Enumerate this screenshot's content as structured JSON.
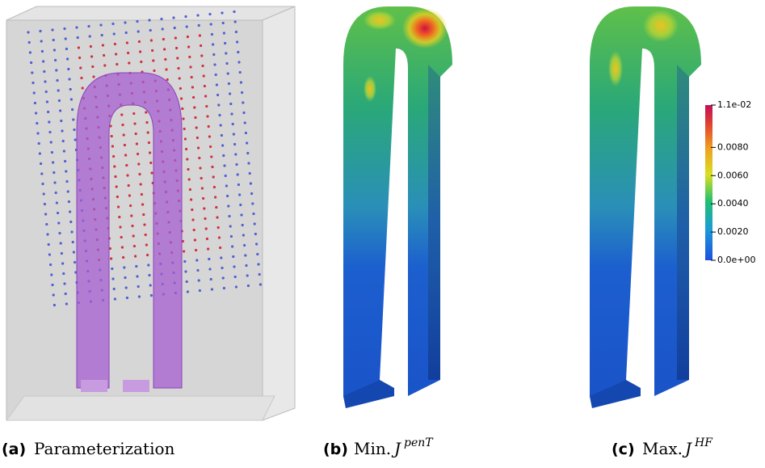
{
  "figures": [
    {
      "label": "(a)",
      "caption": "Parameterization"
    },
    {
      "label": "(b)",
      "caption": "Min.",
      "symbol": "J",
      "superscript": "penT"
    },
    {
      "label": "(c)",
      "caption": "Max.",
      "symbol": "J",
      "superscript": "HF"
    }
  ],
  "colorbar": {
    "range": [
      0,
      0.011
    ],
    "ticks": [
      {
        "value": 0.011,
        "label": "1.1e-02"
      },
      {
        "value": 0.008,
        "label": "0.0080"
      },
      {
        "value": 0.006,
        "label": "0.0060"
      },
      {
        "value": 0.004,
        "label": "0.0040"
      },
      {
        "value": 0.002,
        "label": "0.0020"
      },
      {
        "value": 0,
        "label": "0.0e+00"
      }
    ]
  }
}
